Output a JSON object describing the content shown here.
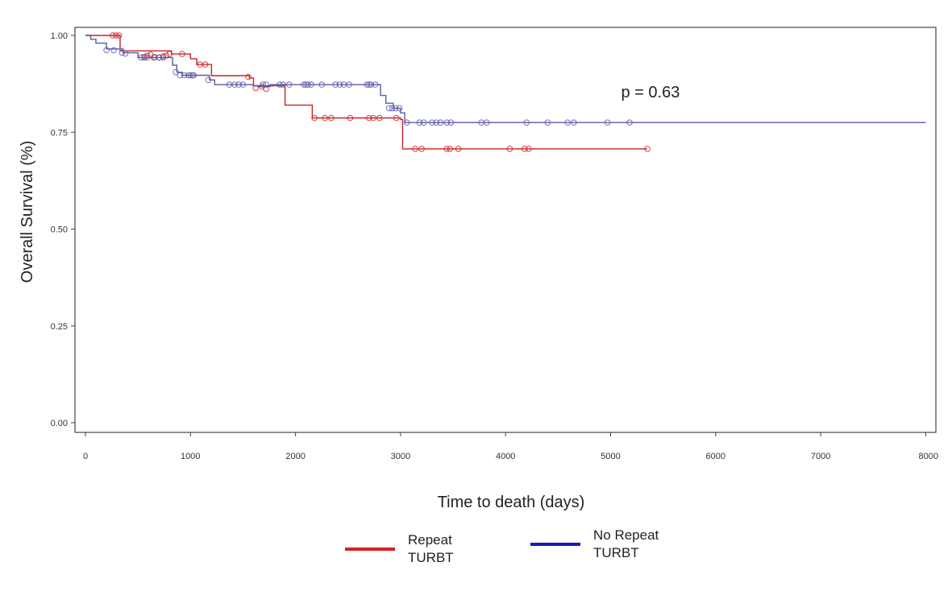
{
  "chart_data": {
    "type": "line",
    "subtype": "kaplan-meier",
    "title": "",
    "xlabel": "Time to death (days)",
    "ylabel": "Overall Survival (%)",
    "xlim": [
      0,
      8000
    ],
    "ylim": [
      0,
      1
    ],
    "xticks": [
      0,
      1000,
      2000,
      3000,
      4000,
      5000,
      6000,
      7000,
      8000
    ],
    "xtick_labels": [
      "0",
      "1000",
      "2000",
      "3000",
      "4000",
      "5000",
      "6000",
      "7000",
      "8000"
    ],
    "yticks": [
      0,
      0.25,
      0.5,
      0.75,
      1.0
    ],
    "ytick_labels": [
      "0.00",
      "0.25",
      "0.50",
      "0.75",
      "1.00"
    ],
    "grid": false,
    "legend_position": "bottom",
    "annotations": [
      {
        "text": "p = 0.63",
        "x": 5100,
        "y": 0.84
      }
    ],
    "series": [
      {
        "name": "Repeat TURBT",
        "legend_line1": "Repeat",
        "legend_line2": "TURBT",
        "color": "#cc2222",
        "legend_color": "#d42020",
        "steps": [
          [
            0,
            1.0
          ],
          [
            330,
            0.96
          ],
          [
            820,
            0.952
          ],
          [
            1000,
            0.94
          ],
          [
            1060,
            0.925
          ],
          [
            1200,
            0.896
          ],
          [
            1560,
            0.89
          ],
          [
            1600,
            0.87
          ],
          [
            1900,
            0.82
          ],
          [
            2160,
            0.787
          ],
          [
            3000,
            0.783
          ],
          [
            3020,
            0.707
          ],
          [
            5350,
            0.707
          ]
        ],
        "censored": [
          [
            260,
            1.0
          ],
          [
            290,
            1.0
          ],
          [
            320,
            1.0
          ],
          [
            560,
            0.945
          ],
          [
            590,
            0.948
          ],
          [
            620,
            0.95
          ],
          [
            660,
            0.944
          ],
          [
            700,
            0.943
          ],
          [
            740,
            0.946
          ],
          [
            770,
            0.948
          ],
          [
            800,
            0.952
          ],
          [
            920,
            0.952
          ],
          [
            1090,
            0.925
          ],
          [
            1140,
            0.925
          ],
          [
            1550,
            0.893
          ],
          [
            1620,
            0.864
          ],
          [
            1680,
            0.868
          ],
          [
            1720,
            0.862
          ],
          [
            2180,
            0.787
          ],
          [
            2280,
            0.787
          ],
          [
            2340,
            0.787
          ],
          [
            2520,
            0.787
          ],
          [
            2700,
            0.787
          ],
          [
            2740,
            0.787
          ],
          [
            2800,
            0.787
          ],
          [
            2960,
            0.787
          ],
          [
            3140,
            0.707
          ],
          [
            3200,
            0.707
          ],
          [
            3440,
            0.707
          ],
          [
            3470,
            0.707
          ],
          [
            3550,
            0.707
          ],
          [
            4040,
            0.707
          ],
          [
            4180,
            0.707
          ],
          [
            4220,
            0.707
          ],
          [
            5350,
            0.707
          ]
        ]
      },
      {
        "name": "No Repeat TURBT",
        "legend_line1": "No Repeat",
        "legend_line2": "TURBT",
        "color": "#5a5aa8",
        "legend_color": "#1a1ab8",
        "steps": [
          [
            0,
            1.0
          ],
          [
            50,
            0.99
          ],
          [
            100,
            0.98
          ],
          [
            200,
            0.965
          ],
          [
            360,
            0.955
          ],
          [
            500,
            0.943
          ],
          [
            830,
            0.923
          ],
          [
            870,
            0.905
          ],
          [
            920,
            0.897
          ],
          [
            1180,
            0.885
          ],
          [
            1230,
            0.873
          ],
          [
            1600,
            0.87
          ],
          [
            1640,
            0.868
          ],
          [
            1760,
            0.873
          ],
          [
            2770,
            0.873
          ],
          [
            2810,
            0.845
          ],
          [
            2860,
            0.825
          ],
          [
            2930,
            0.812
          ],
          [
            3000,
            0.8
          ],
          [
            3040,
            0.775
          ],
          [
            8000,
            0.775
          ]
        ],
        "censored": [
          [
            200,
            0.962
          ],
          [
            270,
            0.962
          ],
          [
            350,
            0.955
          ],
          [
            380,
            0.953
          ],
          [
            530,
            0.943
          ],
          [
            560,
            0.943
          ],
          [
            590,
            0.943
          ],
          [
            650,
            0.943
          ],
          [
            700,
            0.943
          ],
          [
            740,
            0.943
          ],
          [
            860,
            0.905
          ],
          [
            900,
            0.897
          ],
          [
            940,
            0.897
          ],
          [
            980,
            0.897
          ],
          [
            1000,
            0.897
          ],
          [
            1020,
            0.897
          ],
          [
            1030,
            0.897
          ],
          [
            1170,
            0.885
          ],
          [
            1370,
            0.873
          ],
          [
            1420,
            0.873
          ],
          [
            1460,
            0.873
          ],
          [
            1500,
            0.873
          ],
          [
            1690,
            0.873
          ],
          [
            1720,
            0.873
          ],
          [
            1850,
            0.873
          ],
          [
            1880,
            0.873
          ],
          [
            1940,
            0.873
          ],
          [
            2080,
            0.873
          ],
          [
            2100,
            0.873
          ],
          [
            2120,
            0.873
          ],
          [
            2150,
            0.873
          ],
          [
            2250,
            0.873
          ],
          [
            2380,
            0.873
          ],
          [
            2420,
            0.873
          ],
          [
            2460,
            0.873
          ],
          [
            2510,
            0.873
          ],
          [
            2680,
            0.873
          ],
          [
            2700,
            0.873
          ],
          [
            2720,
            0.873
          ],
          [
            2760,
            0.873
          ],
          [
            2890,
            0.812
          ],
          [
            2920,
            0.812
          ],
          [
            2950,
            0.812
          ],
          [
            2990,
            0.812
          ],
          [
            3060,
            0.775
          ],
          [
            3180,
            0.775
          ],
          [
            3220,
            0.775
          ],
          [
            3300,
            0.775
          ],
          [
            3340,
            0.775
          ],
          [
            3380,
            0.775
          ],
          [
            3440,
            0.775
          ],
          [
            3480,
            0.775
          ],
          [
            3770,
            0.775
          ],
          [
            3820,
            0.775
          ],
          [
            4200,
            0.775
          ],
          [
            4400,
            0.775
          ],
          [
            4590,
            0.775
          ],
          [
            4650,
            0.775
          ],
          [
            4970,
            0.775
          ],
          [
            5180,
            0.775
          ]
        ]
      }
    ]
  }
}
